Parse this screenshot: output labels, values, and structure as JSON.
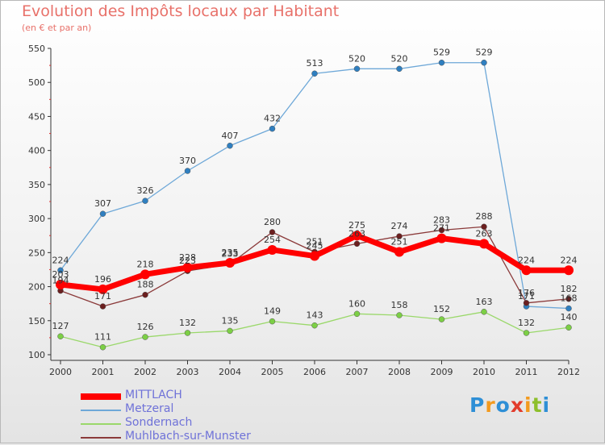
{
  "title": "Evolution des Impôts locaux par Habitant",
  "subtitle": "(en € et par an)",
  "logo": {
    "letters": [
      "P",
      "r",
      "o",
      "x",
      "i",
      "t",
      "i"
    ],
    "colors": [
      "#2e8fd6",
      "#f39a1f",
      "#2e8fd6",
      "#e23c2c",
      "#f39a1f",
      "#8dbf2b",
      "#2e8fd6"
    ]
  },
  "chart_data": {
    "type": "line",
    "x": [
      2000,
      2001,
      2002,
      2003,
      2004,
      2005,
      2006,
      2007,
      2008,
      2009,
      2010,
      2011,
      2012
    ],
    "ylim": [
      100,
      550
    ],
    "yticks": [
      100,
      150,
      200,
      250,
      300,
      350,
      400,
      450,
      500,
      550
    ],
    "grid": false,
    "legend_position": "bottom-left",
    "series": [
      {
        "name": "MITTLACH",
        "color": "#ff0000",
        "width": 7,
        "marker_r": 6,
        "values": [
          203,
          196,
          218,
          228,
          235,
          254,
          245,
          275,
          251,
          271,
          263,
          224,
          224
        ],
        "labels": [
          "203",
          "196",
          "218",
          "228",
          "235",
          "254",
          "245",
          "275",
          "251",
          "271",
          "263",
          "224",
          "224"
        ]
      },
      {
        "name": "Metzeral",
        "color": "#6ea8d8",
        "width": 1.3,
        "marker_r": 3.5,
        "marker_fill": "#2f7fc0",
        "values": [
          224,
          307,
          326,
          370,
          407,
          432,
          513,
          520,
          520,
          529,
          529,
          171,
          168
        ],
        "labels": [
          "224",
          "307",
          "326",
          "370",
          "407",
          "432",
          "513",
          "520",
          "520",
          "529",
          "529",
          "171",
          "168"
        ]
      },
      {
        "name": "Sondernach",
        "color": "#9ad86a",
        "width": 1.3,
        "marker_r": 3.5,
        "marker_fill": "#7ccf45",
        "values": [
          127,
          111,
          126,
          132,
          135,
          149,
          143,
          160,
          158,
          152,
          163,
          132,
          140
        ],
        "labels": [
          "127",
          "111",
          "126",
          "132",
          "135",
          "149",
          "143",
          "160",
          "158",
          "152",
          "163",
          "132",
          "140"
        ]
      },
      {
        "name": "Muhlbach-sur-Munster",
        "color": "#8b3a3a",
        "width": 1.3,
        "marker_r": 3.5,
        "marker_fill": "#6b1f1f",
        "values": [
          194,
          171,
          188,
          223,
          233,
          280,
          251,
          263,
          274,
          283,
          288,
          176,
          182
        ],
        "labels": [
          "194",
          "171",
          "188",
          "223",
          "233",
          "280",
          "251",
          "263",
          "274",
          "283",
          "288",
          "176",
          "182"
        ]
      }
    ]
  }
}
